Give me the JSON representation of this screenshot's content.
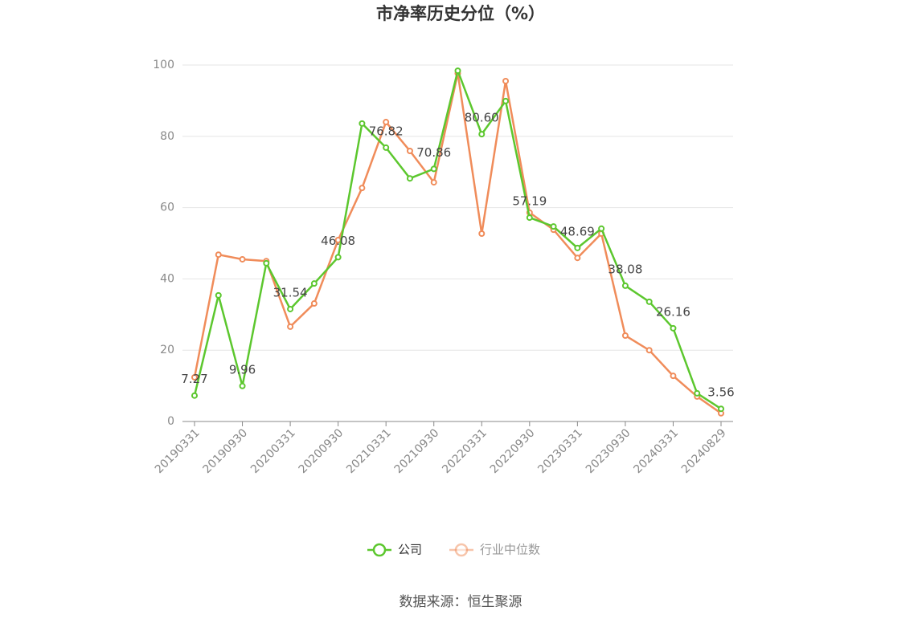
{
  "chart_data": {
    "type": "line",
    "title": "市净率历史分位（%）",
    "source": "数据来源：恒生聚源",
    "categories": [
      "20190331",
      null,
      "20190930",
      null,
      "20200331",
      null,
      "20200930",
      null,
      "20210331",
      null,
      "20210930",
      null,
      "20220331",
      null,
      "20220930",
      null,
      "20230331",
      null,
      "20230930",
      null,
      "20240331",
      null,
      "20240829"
    ],
    "series": [
      {
        "name": "公司",
        "color": "#5cc72e",
        "values": [
          7.27,
          35.4,
          9.96,
          44.4,
          31.54,
          38.7,
          46.08,
          83.6,
          76.82,
          68.2,
          70.86,
          98.4,
          80.6,
          89.9,
          57.19,
          54.7,
          48.69,
          54.1,
          38.08,
          33.6,
          26.16,
          7.9,
          3.56
        ],
        "value_labels": [
          "7.27",
          null,
          "9.96",
          null,
          "31.54",
          null,
          "46.08",
          null,
          "76.82",
          null,
          "70.86",
          null,
          "80.60",
          null,
          "57.19",
          null,
          "48.69",
          null,
          "38.08",
          null,
          "26.16",
          null,
          "3.56"
        ]
      },
      {
        "name": "行业中位数",
        "color": "#f08c5a",
        "values": [
          12.4,
          46.8,
          45.5,
          45.0,
          26.6,
          33.1,
          50.9,
          65.5,
          84.0,
          75.9,
          67.1,
          97.7,
          52.7,
          95.5,
          58.6,
          53.8,
          45.9,
          52.7,
          24.1,
          20.0,
          12.8,
          7.0,
          2.3
        ]
      }
    ],
    "ylim": [
      0,
      100
    ],
    "yticks": [
      0,
      20,
      40,
      60,
      80,
      100
    ],
    "grid": true,
    "legend": "bottom"
  }
}
